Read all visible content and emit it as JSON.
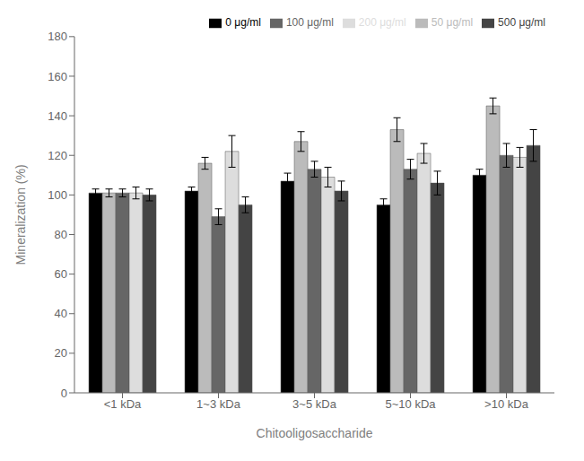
{
  "chart_data": {
    "type": "bar",
    "xlabel": "Chitooligosaccharide",
    "ylabel": "Mineralization (%)",
    "categories": [
      "<1 kDa",
      "1~3 kDa",
      "3~5 kDa",
      "5~10 kDa",
      ">10 kDa"
    ],
    "series": [
      {
        "name": "0 μg/ml",
        "color": "#000000",
        "values": [
          101,
          102,
          107,
          95,
          110
        ],
        "errors": [
          2,
          2,
          4,
          3,
          3
        ]
      },
      {
        "name": "50 μg/ml",
        "color": "#bbbbbb",
        "values": [
          101,
          116,
          127,
          133,
          145
        ],
        "errors": [
          2,
          3,
          5,
          6,
          4
        ]
      },
      {
        "name": "100 μg/ml",
        "color": "#666666",
        "values": [
          101,
          89,
          113,
          113,
          120
        ],
        "errors": [
          2,
          4,
          4,
          5,
          6
        ]
      },
      {
        "name": "200 μg/ml",
        "color": "#dddddd",
        "values": [
          101,
          122,
          109,
          121,
          119
        ],
        "errors": [
          3,
          8,
          5,
          5,
          5
        ]
      },
      {
        "name": "500 μg/ml",
        "color": "#444444",
        "values": [
          100,
          95,
          102,
          106,
          125
        ],
        "errors": [
          3,
          4,
          5,
          6,
          8
        ]
      }
    ],
    "ylim": [
      0,
      180
    ],
    "yticks": [
      0,
      20,
      40,
      60,
      80,
      100,
      120,
      140,
      160,
      180
    ],
    "grid": false,
    "legend": "upper right"
  }
}
